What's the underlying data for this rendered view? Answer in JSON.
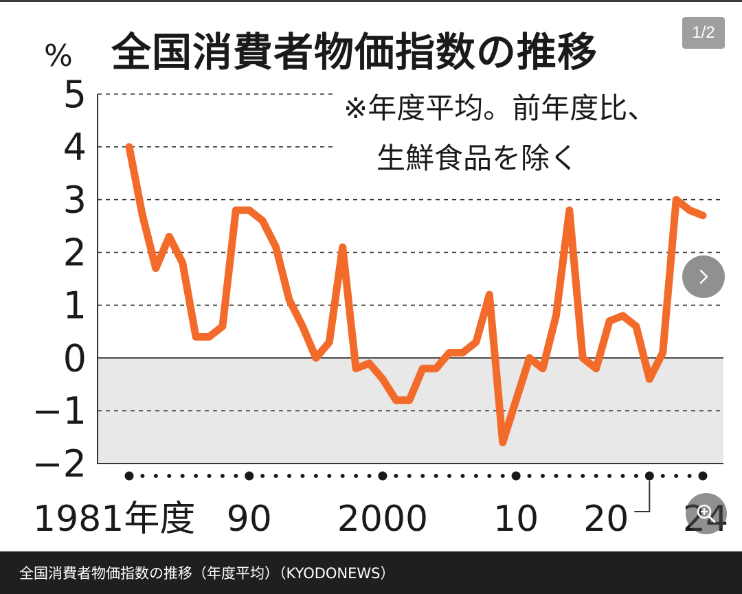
{
  "viewer": {
    "counter": "1/2",
    "next_icon": "chevron-right-icon",
    "zoom_icon": "zoom-in-icon"
  },
  "caption": "全国消費者物価指数の推移（年度平均）（KYODONEWS）",
  "colors": {
    "series": "#f26b2a",
    "negative_area": "#e8e8e8",
    "caption_bg": "#1f1f1f"
  },
  "chart_data": {
    "type": "line",
    "title": "全国消費者物価指数の推移",
    "unit_label": "%",
    "note_line1": "※年度平均。前年度比、",
    "note_line2": "生鮮食品を除く",
    "x_tick_labels": [
      "1981年度",
      "90",
      "2000",
      "10",
      "20",
      "24"
    ],
    "x_tick_years": [
      1981,
      1990,
      2000,
      2010,
      2020,
      2024
    ],
    "y_tick_labels": [
      "5",
      "4",
      "3",
      "2",
      "1",
      "0",
      "−1",
      "−2"
    ],
    "ylim": [
      -2,
      5
    ],
    "xlim": [
      1981,
      2024
    ],
    "grid": "dashed horizontal",
    "x": [
      1981,
      1982,
      1983,
      1984,
      1985,
      1986,
      1987,
      1988,
      1989,
      1990,
      1991,
      1992,
      1993,
      1994,
      1995,
      1996,
      1997,
      1998,
      1999,
      2000,
      2001,
      2002,
      2003,
      2004,
      2005,
      2006,
      2007,
      2008,
      2009,
      2010,
      2011,
      2012,
      2013,
      2014,
      2015,
      2016,
      2017,
      2018,
      2019,
      2020,
      2021,
      2022,
      2023,
      2024
    ],
    "values": [
      4.0,
      2.7,
      1.7,
      2.3,
      1.8,
      0.4,
      0.4,
      0.6,
      2.8,
      2.8,
      2.6,
      2.1,
      1.1,
      0.6,
      0.0,
      0.3,
      2.1,
      -0.2,
      -0.1,
      -0.4,
      -0.8,
      -0.8,
      -0.2,
      -0.2,
      0.1,
      0.1,
      0.3,
      1.2,
      -1.6,
      -0.8,
      0.0,
      -0.2,
      0.8,
      2.8,
      0.0,
      -0.2,
      0.7,
      0.8,
      0.6,
      -0.4,
      0.1,
      3.0,
      2.8,
      2.7
    ]
  }
}
